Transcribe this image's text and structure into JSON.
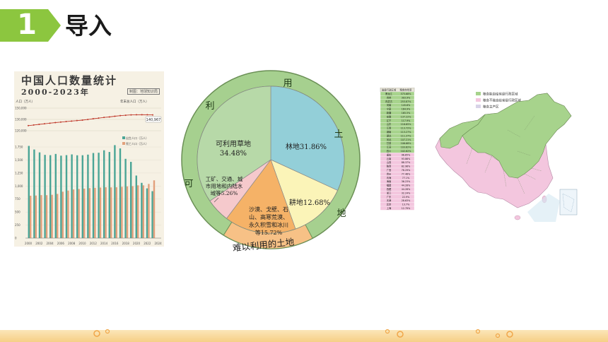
{
  "header": {
    "number": "1",
    "title": "导入"
  },
  "population_chart": {
    "title": "中国人口数量统计",
    "subtitle": "2000-2023年",
    "source": "制图：地球知识局",
    "ylabel": "人口（万人）",
    "top_legend": "年末总人口（万人）",
    "end_value": "140,967",
    "yticks_top": [
      "150,000",
      "130,000",
      "120,000"
    ],
    "yticks_bottom": [
      "1,750",
      "1,500",
      "1,250",
      "1,000",
      "750",
      "500",
      "250",
      "0"
    ],
    "legend_births": "出生人口（万人）",
    "legend_deaths": "死亡人口（万人）",
    "xticks": [
      "2000",
      "2002",
      "2004",
      "2006",
      "2008",
      "2010",
      "2012",
      "2014",
      "2016",
      "2018",
      "2020",
      "2022",
      "2024"
    ],
    "colors": {
      "births": "#4aa596",
      "deaths": "#e2a07b",
      "line": "#c0392b"
    }
  },
  "pie": {
    "ring_chars": [
      "用",
      "土",
      "地",
      "可",
      "利"
    ],
    "bottom_label": "难以利用的土地",
    "slices": [
      {
        "label": "林地31.86%",
        "value": 31.86,
        "color": "#93cfd8"
      },
      {
        "label": "耕地12.68%",
        "value": 12.68,
        "color": "#fbf4b8"
      },
      {
        "label": "沙漠、戈壁、石山、高寒荒漠、永久积雪和冰川等15.72%",
        "value": 15.72,
        "color": "#f5b267"
      },
      {
        "label": "工矿、交通、城市用地和内陆水域等5.26%",
        "value": 5.26,
        "color": "#f5c9cc"
      },
      {
        "label": "可利用草地 34.48%",
        "value": 34.48,
        "color": "#b7d9a8"
      }
    ],
    "colors": {
      "ring": "#a6d08f",
      "ring_bottom": "#f7c186",
      "border": "#6a8f55"
    }
  },
  "map": {
    "legend": [
      "粮食能自给省级行政区域",
      "粮食不能自给省级行政区域",
      "粮食主产区"
    ],
    "table_header": [
      "省级行政区域",
      "粮食自给率"
    ],
    "table_rows": [
      [
        "黑龙江",
        "575.68%"
      ],
      [
        "吉林",
        "303.9%"
      ],
      [
        "内蒙古",
        "253.87%"
      ],
      [
        "河南",
        "145.6%"
      ],
      [
        "宁夏",
        "164.9%"
      ],
      [
        "新疆",
        "165.5%"
      ],
      [
        "安徽",
        "137.22%"
      ],
      [
        "辽宁",
        "117.9%"
      ],
      [
        "山东",
        "116.65%"
      ],
      [
        "江西",
        "113.72%"
      ],
      [
        "湖南",
        "113.27%"
      ],
      [
        "湖北",
        "111.37%"
      ],
      [
        "河北",
        "107.21%"
      ],
      [
        "甘肃",
        "106.68%"
      ],
      [
        "江苏",
        "103.62%"
      ],
      [
        "四川",
        "102.62%"
      ],
      [
        "重庆",
        "96.65%"
      ],
      [
        "云南",
        "93.86%"
      ],
      [
        "山西",
        "88.37%"
      ],
      [
        "陕西",
        "82.96%"
      ],
      [
        "广西",
        "78.29%"
      ],
      [
        "贵州",
        "77.46%"
      ],
      [
        "青海",
        "77.1%"
      ],
      [
        "海南",
        "36.23%"
      ],
      [
        "福建",
        "44.28%"
      ],
      [
        "西藏",
        "44.28%"
      ],
      [
        "浙江",
        "32.24%"
      ],
      [
        "广东",
        "22.9%"
      ],
      [
        "天津",
        "28.63%"
      ],
      [
        "北京",
        "13.7%"
      ],
      [
        "上海",
        "12.79%"
      ]
    ],
    "colors": {
      "self_sufficient": "#a7d38c",
      "not_self_sufficient": "#f3c6de",
      "main_area": "#d8d3e8"
    }
  },
  "colors": {
    "accent": "#8cc63f",
    "strip": "#f7d493"
  }
}
